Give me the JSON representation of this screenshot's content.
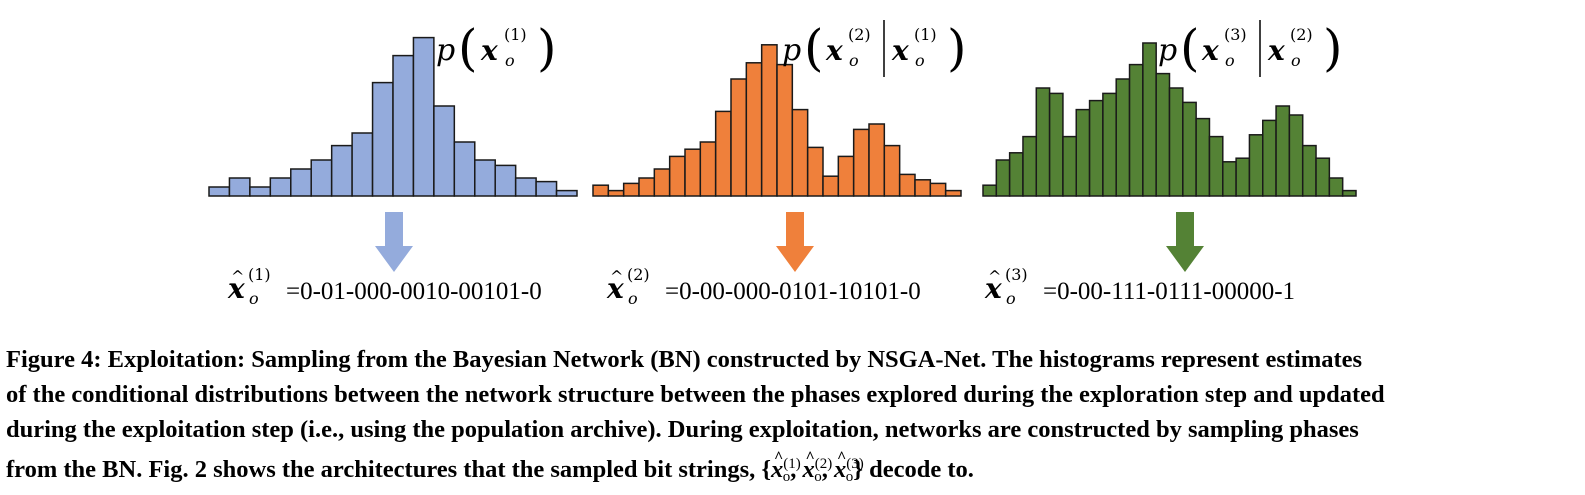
{
  "chart_data": [
    {
      "type": "bar",
      "name": "histogram-phase-1",
      "label": "p(x_o^(1))",
      "color": "#94abdc",
      "values": [
        0.5,
        1.0,
        0.5,
        1.0,
        1.5,
        2.0,
        2.8,
        3.5,
        6.3,
        7.8,
        8.8,
        5.0,
        3.0,
        2.0,
        1.7,
        1.0,
        0.8,
        0.3
      ],
      "max": 10.0
    },
    {
      "type": "bar",
      "name": "histogram-phase-2",
      "label": "p(x_o^(2) | x_o^(1))",
      "color": "#ef803b",
      "values": [
        0.6,
        0.3,
        0.7,
        1.0,
        1.5,
        2.2,
        2.6,
        3.0,
        4.7,
        6.5,
        7.4,
        8.4,
        7.3,
        4.8,
        2.7,
        1.1,
        2.2,
        3.7,
        4.0,
        2.8,
        1.2,
        0.9,
        0.7,
        0.3
      ],
      "max": 10.0
    },
    {
      "type": "bar",
      "name": "histogram-phase-3",
      "label": "p(x_o^(3) | x_o^(2))",
      "color": "#548235",
      "values": [
        0.6,
        2.0,
        2.4,
        3.3,
        6.0,
        5.7,
        3.3,
        4.8,
        5.3,
        5.7,
        6.5,
        7.3,
        8.5,
        6.8,
        6.0,
        5.2,
        4.3,
        3.3,
        1.9,
        2.1,
        3.4,
        4.2,
        5.0,
        4.5,
        2.8,
        2.1,
        1.0,
        0.3
      ],
      "max": 10.0
    }
  ],
  "histograms": {
    "h1": {
      "p": "p",
      "x": "x",
      "o": "o",
      "sup": "(1)"
    },
    "h2": {
      "p": "p",
      "x": "x",
      "o": "o",
      "sup": "(2)",
      "cond_sup": "(1)"
    },
    "h3": {
      "p": "p",
      "x": "x",
      "o": "o",
      "sup": "(3)",
      "cond_sup": "(2)"
    }
  },
  "samples": [
    {
      "sup": "(1)",
      "bits": "=0-01-000-0010-00101-0"
    },
    {
      "sup": "(2)",
      "bits": "=0-00-000-0101-10101-0"
    },
    {
      "sup": "(3)",
      "bits": "=0-00-111-0111-00000-1"
    }
  ],
  "colors": {
    "blue": "#94abdc",
    "orange": "#ef803b",
    "green": "#548235"
  },
  "caption": {
    "line1": "Figure 4: Exploitation: Sampling from the Bayesian Network (BN) constructed by NSGA-Net. The histograms represent estimates",
    "line2": "of the conditional distributions between the network structure between the phases explored during the exploration step and updated",
    "line3": "during the exploitation step (i.e., using the population archive). During exploitation, networks are constructed by sampling phases",
    "line4": "from the BN. Fig. 2 shows the architectures that the sampled bit strings, {",
    "sub_o": "o",
    "sup1": "(1)",
    "sup2": "(2)",
    "sup3": "(3)",
    "comma": ",",
    "line4_end": "} decode to."
  }
}
